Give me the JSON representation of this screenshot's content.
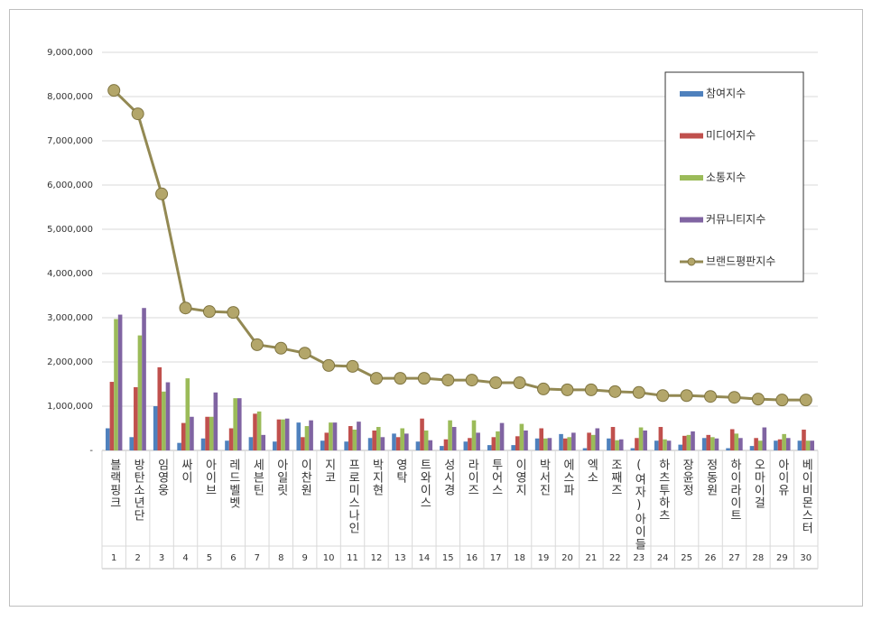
{
  "chart_data": {
    "type": "bar",
    "categories": [
      "블랙핑크",
      "방탄소년단",
      "임영웅",
      "싸이",
      "아이브",
      "레드벨벳",
      "세븐틴",
      "아일릿",
      "이찬원",
      "지코",
      "프로미스나인",
      "박지현",
      "영탁",
      "트와이스",
      "성시경",
      "라이즈",
      "투어스",
      "이영지",
      "박서진",
      "에스파",
      "엑소",
      "조째즈",
      "(여자)아이들",
      "하츠투하츠",
      "장윤정",
      "정동원",
      "하이라이트",
      "오마이걸",
      "아이유",
      "베이비몬스터"
    ],
    "ranks": [
      1,
      2,
      3,
      4,
      5,
      6,
      7,
      8,
      9,
      10,
      11,
      12,
      13,
      14,
      15,
      16,
      17,
      18,
      19,
      20,
      21,
      22,
      23,
      24,
      25,
      26,
      27,
      28,
      29,
      30
    ],
    "ylim": [
      0,
      9000000
    ],
    "yticks": [
      {
        "value": 0,
        "label": "-"
      },
      {
        "value": 1000000,
        "label": "1,000,000"
      },
      {
        "value": 2000000,
        "label": "2,000,000"
      },
      {
        "value": 3000000,
        "label": "3,000,000"
      },
      {
        "value": 4000000,
        "label": "4,000,000"
      },
      {
        "value": 5000000,
        "label": "5,000,000"
      },
      {
        "value": 6000000,
        "label": "6,000,000"
      },
      {
        "value": 7000000,
        "label": "7,000,000"
      },
      {
        "value": 8000000,
        "label": "8,000,000"
      },
      {
        "value": 9000000,
        "label": "9,000,000"
      }
    ],
    "grid": true,
    "legend": "upper right",
    "series": [
      {
        "name": "참여지수",
        "type": "bar",
        "color": "#4f81bd",
        "values": [
          500000,
          300000,
          1000000,
          170000,
          270000,
          220000,
          300000,
          200000,
          630000,
          220000,
          200000,
          280000,
          380000,
          200000,
          100000,
          200000,
          120000,
          120000,
          270000,
          370000,
          50000,
          270000,
          50000,
          220000,
          130000,
          280000,
          50000,
          100000,
          220000,
          220000
        ]
      },
      {
        "name": "미디어지수",
        "type": "bar",
        "color": "#c0504d",
        "values": [
          1550000,
          1430000,
          1880000,
          620000,
          760000,
          500000,
          830000,
          700000,
          300000,
          400000,
          550000,
          450000,
          300000,
          720000,
          250000,
          280000,
          300000,
          320000,
          500000,
          270000,
          400000,
          530000,
          280000,
          530000,
          330000,
          350000,
          480000,
          280000,
          250000,
          470000
        ]
      },
      {
        "name": "소통지수",
        "type": "bar",
        "color": "#9bbb59",
        "values": [
          2970000,
          2600000,
          1330000,
          1630000,
          760000,
          1180000,
          880000,
          700000,
          550000,
          630000,
          470000,
          530000,
          500000,
          450000,
          680000,
          680000,
          430000,
          600000,
          270000,
          300000,
          350000,
          230000,
          520000,
          250000,
          350000,
          300000,
          380000,
          220000,
          370000,
          220000
        ]
      },
      {
        "name": "커뮤니티지수",
        "type": "bar",
        "color": "#8064a2",
        "values": [
          3070000,
          3220000,
          1540000,
          760000,
          1310000,
          1180000,
          350000,
          720000,
          680000,
          630000,
          650000,
          300000,
          380000,
          230000,
          530000,
          400000,
          620000,
          450000,
          280000,
          400000,
          500000,
          250000,
          450000,
          220000,
          430000,
          270000,
          280000,
          520000,
          280000,
          220000
        ]
      },
      {
        "name": "브랜드평판지수",
        "type": "line",
        "color": "#938953",
        "values": [
          8140000,
          7610000,
          5800000,
          3220000,
          3140000,
          3120000,
          2390000,
          2310000,
          2200000,
          1920000,
          1900000,
          1630000,
          1630000,
          1630000,
          1590000,
          1590000,
          1530000,
          1530000,
          1390000,
          1370000,
          1370000,
          1330000,
          1310000,
          1240000,
          1240000,
          1220000,
          1200000,
          1160000,
          1140000,
          1140000
        ]
      }
    ]
  }
}
